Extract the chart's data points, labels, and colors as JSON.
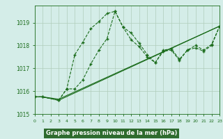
{
  "line1": {
    "x": [
      0,
      1,
      3,
      4,
      5,
      6,
      7,
      8,
      9,
      10,
      11,
      12,
      13,
      14,
      15,
      16,
      17,
      18,
      19,
      20,
      21,
      22,
      23
    ],
    "y": [
      1015.75,
      1015.75,
      1015.6,
      1016.1,
      1017.6,
      1018.15,
      1018.75,
      1019.05,
      1019.4,
      1019.5,
      1018.8,
      1018.55,
      1018.1,
      1017.6,
      1017.25,
      1017.8,
      1017.85,
      1017.4,
      1017.8,
      1018.0,
      1017.8,
      1018.05,
      1018.85
    ]
  },
  "line2": {
    "x": [
      0,
      1,
      3,
      4,
      5,
      6,
      7,
      8,
      9,
      10,
      11,
      12,
      13,
      14,
      15,
      16,
      17,
      18,
      19,
      20,
      21,
      22,
      23
    ],
    "y": [
      1015.75,
      1015.75,
      1015.6,
      1016.1,
      1016.1,
      1016.5,
      1017.2,
      1017.8,
      1018.3,
      1019.5,
      1018.8,
      1018.25,
      1017.95,
      1017.5,
      1017.25,
      1017.75,
      1017.8,
      1017.35,
      1017.8,
      1017.9,
      1017.75,
      1018.0,
      1018.85
    ]
  },
  "line3": {
    "x": [
      0,
      1,
      3,
      23
    ],
    "y": [
      1015.75,
      1015.75,
      1015.65,
      1018.85
    ]
  },
  "line4": {
    "x": [
      0,
      1,
      3,
      23
    ],
    "y": [
      1015.75,
      1015.75,
      1015.6,
      1018.85
    ]
  },
  "bg_color": "#d4ede8",
  "line_color": "#1a6b1a",
  "grid_color": "#b0ccbb",
  "xlabel": "Graphe pression niveau de la mer (hPa)",
  "xlabel_bg": "#2e6b2e",
  "xlabel_color": "#ffffff",
  "ylim": [
    1015.0,
    1019.75
  ],
  "xlim": [
    0,
    23
  ],
  "yticks": [
    1015,
    1016,
    1017,
    1018,
    1019
  ],
  "xticks": [
    0,
    1,
    2,
    3,
    4,
    5,
    6,
    7,
    8,
    9,
    10,
    11,
    12,
    13,
    14,
    15,
    16,
    17,
    18,
    19,
    20,
    21,
    22,
    23
  ]
}
